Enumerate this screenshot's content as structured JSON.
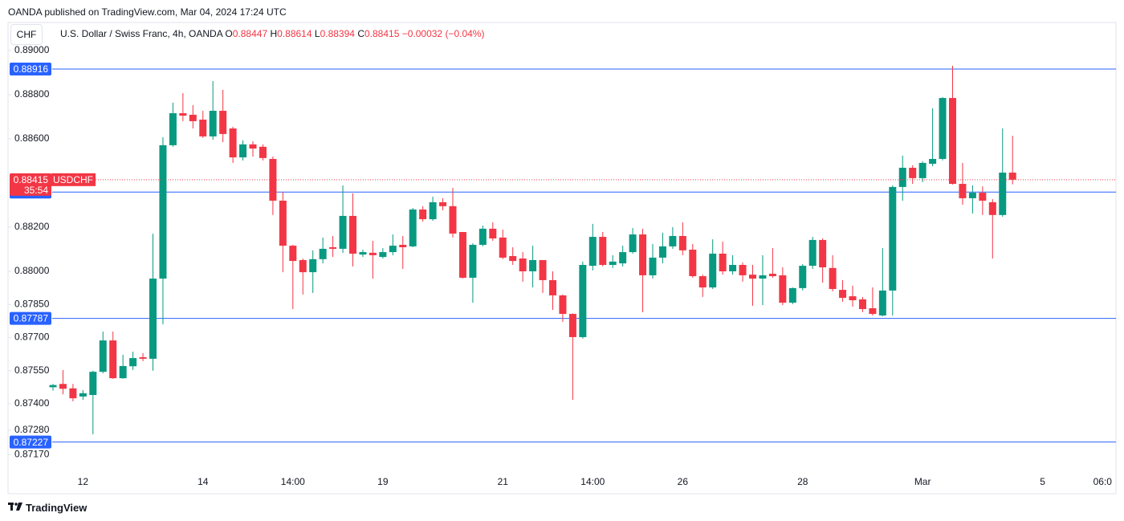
{
  "chart_data": {
    "type": "candlestick",
    "header": "OANDA published on TradingView.com, Mar 04, 2024 17:24 UTC",
    "currency": "CHF",
    "title": "U.S. Dollar / Swiss Franc, 4h, OANDA",
    "legend_labels": [
      "O",
      "H",
      "L",
      "C"
    ],
    "change_text": "−0.00032 (−0.04%)",
    "symbol_tag": "USDCHF",
    "countdown": "35:54",
    "footer": "TradingView",
    "up_color": "#089981",
    "down_color": "#f23645",
    "level_color": "#2962ff",
    "levels": [
      0.88916,
      0.88359,
      0.87787,
      0.87227
    ],
    "ylim": [
      0.87091,
      0.89127
    ],
    "yticks": [
      {
        "value": 0.89,
        "label": "0.89000"
      },
      {
        "value": 0.888,
        "label": "0.88800"
      },
      {
        "value": 0.886,
        "label": "0.88600"
      },
      {
        "value": 0.882,
        "label": "0.88200"
      },
      {
        "value": 0.88,
        "label": "0.88000"
      },
      {
        "value": 0.8785,
        "label": "0.87850"
      },
      {
        "value": 0.877,
        "label": "0.87700"
      },
      {
        "value": 0.8755,
        "label": "0.87550"
      },
      {
        "value": 0.874,
        "label": "0.87400"
      },
      {
        "value": 0.8728,
        "label": "0.87280"
      },
      {
        "value": 0.8717,
        "label": "0.87170"
      }
    ],
    "categories": [
      null,
      null,
      null,
      "12",
      null,
      null,
      null,
      null,
      null,
      null,
      null,
      null,
      null,
      null,
      null,
      "14",
      null,
      null,
      null,
      null,
      null,
      null,
      null,
      null,
      "14:00",
      null,
      null,
      null,
      null,
      null,
      null,
      null,
      null,
      "19",
      null,
      null,
      null,
      null,
      null,
      null,
      null,
      null,
      null,
      null,
      null,
      "21",
      null,
      null,
      null,
      null,
      null,
      null,
      null,
      null,
      "14:00",
      null,
      null,
      null,
      null,
      null,
      null,
      null,
      null,
      "26",
      null,
      null,
      null,
      null,
      null,
      null,
      null,
      null,
      null,
      null,
      null,
      "28",
      null,
      null,
      null,
      null,
      null,
      null,
      null,
      null,
      null,
      null,
      null,
      "Mar",
      null,
      null,
      null,
      null,
      null,
      null,
      null,
      null,
      null,
      null,
      null,
      "5",
      null,
      null,
      null,
      null,
      null,
      "06:0"
    ],
    "open": [
      0.87475,
      0.8749,
      0.8747,
      0.87433,
      0.8744,
      0.87545,
      0.87687,
      0.87516,
      0.8757,
      0.87611,
      0.87604,
      0.87967,
      0.88571,
      0.88716,
      0.88709,
      0.88687,
      0.88611,
      0.88727,
      0.88647,
      0.88516,
      0.88575,
      0.88564,
      0.88509,
      0.8832,
      0.88116,
      0.88051,
      0.87996,
      0.88055,
      0.88109,
      0.88102,
      0.88251,
      0.88076,
      0.88084,
      0.88065,
      0.88087,
      0.8812,
      0.88113,
      0.8828,
      0.88236,
      0.88313,
      0.88295,
      0.88178,
      0.87971,
      0.8812,
      0.88193,
      0.88153,
      0.88069,
      0.88058,
      0.88,
      0.88051,
      0.8796,
      0.87891,
      0.87807,
      0.87702,
      0.88025,
      0.88156,
      0.88029,
      0.88036,
      0.88087,
      0.88167,
      0.87982,
      0.88062,
      0.88113,
      0.8816,
      0.88098,
      0.87978,
      0.87927,
      0.8808,
      0.88,
      0.88029,
      0.87985,
      0.87967,
      0.87989,
      0.87982,
      0.87858,
      0.87924,
      0.88025,
      0.88142,
      0.88015,
      0.87916,
      0.87887,
      0.87873,
      0.87833,
      0.878,
      0.87913,
      0.88382,
      0.88469,
      0.88422,
      0.88487,
      0.88509,
      0.88785,
      0.88396,
      0.88331,
      0.88356,
      0.88313,
      0.88255,
      0.88447,
      null,
      null,
      null,
      null,
      null,
      null,
      null,
      null,
      null
    ],
    "high": [
      0.8749,
      0.87553,
      0.8749,
      0.87462,
      0.8755,
      0.87727,
      0.87727,
      0.87622,
      0.87636,
      0.8763,
      0.8817,
      0.88607,
      0.88764,
      0.88807,
      0.88753,
      0.88727,
      0.88862,
      0.88822,
      0.88655,
      0.88593,
      0.88589,
      0.88575,
      0.8852,
      0.8836,
      0.8812,
      0.88058,
      0.88095,
      0.88153,
      0.8816,
      0.88389,
      0.88353,
      0.88098,
      0.88138,
      0.88105,
      0.88167,
      0.8816,
      0.88287,
      0.88295,
      0.88338,
      0.88331,
      0.88378,
      0.88178,
      0.88127,
      0.88207,
      0.88222,
      0.88189,
      0.88109,
      0.88087,
      0.88116,
      0.88051,
      0.88,
      0.87895,
      0.8781,
      0.88044,
      0.88215,
      0.88178,
      0.88073,
      0.88116,
      0.88196,
      0.88193,
      0.88124,
      0.88175,
      0.882,
      0.88222,
      0.88124,
      0.87985,
      0.88145,
      0.88135,
      0.88073,
      0.8804,
      0.88029,
      0.88073,
      0.88105,
      0.88018,
      0.87927,
      0.88033,
      0.88156,
      0.88149,
      0.88073,
      0.8796,
      0.87935,
      0.87884,
      0.87927,
      0.88105,
      0.88389,
      0.88524,
      0.8848,
      0.88498,
      0.88738,
      0.88789,
      0.88931,
      0.88491,
      0.88389,
      0.88385,
      0.88327,
      0.88647,
      0.88614,
      null,
      null,
      null,
      null,
      null,
      null,
      null,
      null,
      null
    ],
    "low": [
      0.8746,
      0.87443,
      0.87411,
      0.87418,
      0.87262,
      0.87538,
      0.87513,
      0.87513,
      0.87553,
      0.87593,
      0.8755,
      0.8776,
      0.88564,
      0.8868,
      0.88647,
      0.88604,
      0.88596,
      0.88585,
      0.88491,
      0.88502,
      0.8852,
      0.88502,
      0.88255,
      0.87996,
      0.87829,
      0.87895,
      0.87902,
      0.88036,
      0.88065,
      0.88084,
      0.88022,
      0.88065,
      0.87967,
      0.88058,
      0.88073,
      0.88011,
      0.88109,
      0.88225,
      0.88229,
      0.88276,
      0.88153,
      0.87967,
      0.87858,
      0.88113,
      0.88138,
      0.88055,
      0.88029,
      0.87953,
      0.87927,
      0.87902,
      0.87825,
      0.87771,
      0.87418,
      0.87695,
      0.88004,
      0.88022,
      0.88015,
      0.88022,
      0.8808,
      0.87815,
      0.87967,
      0.88036,
      0.88102,
      0.88073,
      0.87971,
      0.87884,
      0.8792,
      0.87985,
      0.87985,
      0.87953,
      0.87844,
      0.87847,
      0.87971,
      0.87847,
      0.87851,
      0.87913,
      0.88011,
      0.87949,
      0.87909,
      0.87862,
      0.8784,
      0.87815,
      0.878,
      0.87796,
      0.878,
      0.8832,
      0.88396,
      0.88404,
      0.88476,
      0.88502,
      0.88393,
      0.88302,
      0.88262,
      0.88255,
      0.88058,
      0.88247,
      0.88394,
      null,
      null,
      null,
      null,
      null,
      null,
      null,
      null,
      null
    ],
    "close": [
      0.87485,
      0.87468,
      0.87425,
      0.87448,
      0.87545,
      0.87687,
      0.87516,
      0.87571,
      0.87607,
      0.87604,
      0.87967,
      0.88571,
      0.88716,
      0.88705,
      0.8868,
      0.88611,
      0.88727,
      0.88622,
      0.88516,
      0.88575,
      0.88556,
      0.88513,
      0.8832,
      0.88116,
      0.88047,
      0.87996,
      0.88055,
      0.88102,
      0.88102,
      0.88251,
      0.8808,
      0.88087,
      0.88073,
      0.88087,
      0.88116,
      0.88109,
      0.8828,
      0.88236,
      0.88313,
      0.88295,
      0.88171,
      0.87971,
      0.8812,
      0.88193,
      0.88149,
      0.88062,
      0.88047,
      0.88,
      0.88051,
      0.8796,
      0.87891,
      0.87807,
      0.87702,
      0.88029,
      0.88156,
      0.88029,
      0.88044,
      0.88087,
      0.88167,
      0.87982,
      0.88062,
      0.88113,
      0.8816,
      0.88095,
      0.87978,
      0.87927,
      0.8808,
      0.88,
      0.88029,
      0.87982,
      0.87967,
      0.87982,
      0.87978,
      0.87858,
      0.87924,
      0.88025,
      0.88142,
      0.88018,
      0.8792,
      0.8788,
      0.87869,
      0.87829,
      0.87807,
      0.87913,
      0.88382,
      0.88469,
      0.88422,
      0.88491,
      0.88509,
      0.88785,
      0.88396,
      0.88331,
      0.88356,
      0.8832,
      0.88255,
      0.88447,
      0.88415,
      null,
      null,
      null,
      null,
      null,
      null,
      null,
      null,
      null
    ]
  }
}
